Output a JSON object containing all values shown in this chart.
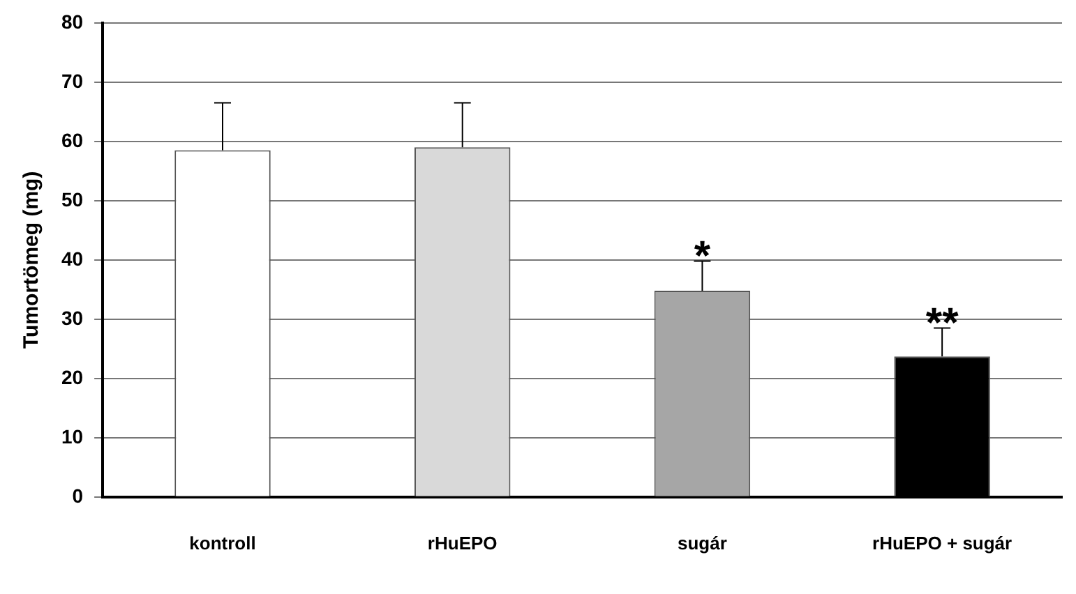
{
  "chart_data": {
    "type": "bar",
    "ylabel": "Tumortömeg (mg)",
    "categories": [
      "kontroll",
      "rHuEPO",
      "sugár",
      "rHuEPO + sugár"
    ],
    "values": [
      58.5,
      59,
      34.8,
      23.7
    ],
    "colors": [
      "#ffffff",
      "#d9d9d9",
      "#a6a6a6",
      "#000000"
    ],
    "errors": [
      [
        58.5,
        66.5
      ],
      [
        59,
        66.5
      ],
      [
        34.8,
        39.8
      ],
      [
        23.7,
        28.5
      ]
    ],
    "ylim": [
      0,
      80
    ],
    "yticks": [
      0,
      10,
      20,
      30,
      40,
      50,
      60,
      70,
      80
    ],
    "grid": "y",
    "legend": false,
    "annotations": [
      "*",
      "**"
    ]
  }
}
